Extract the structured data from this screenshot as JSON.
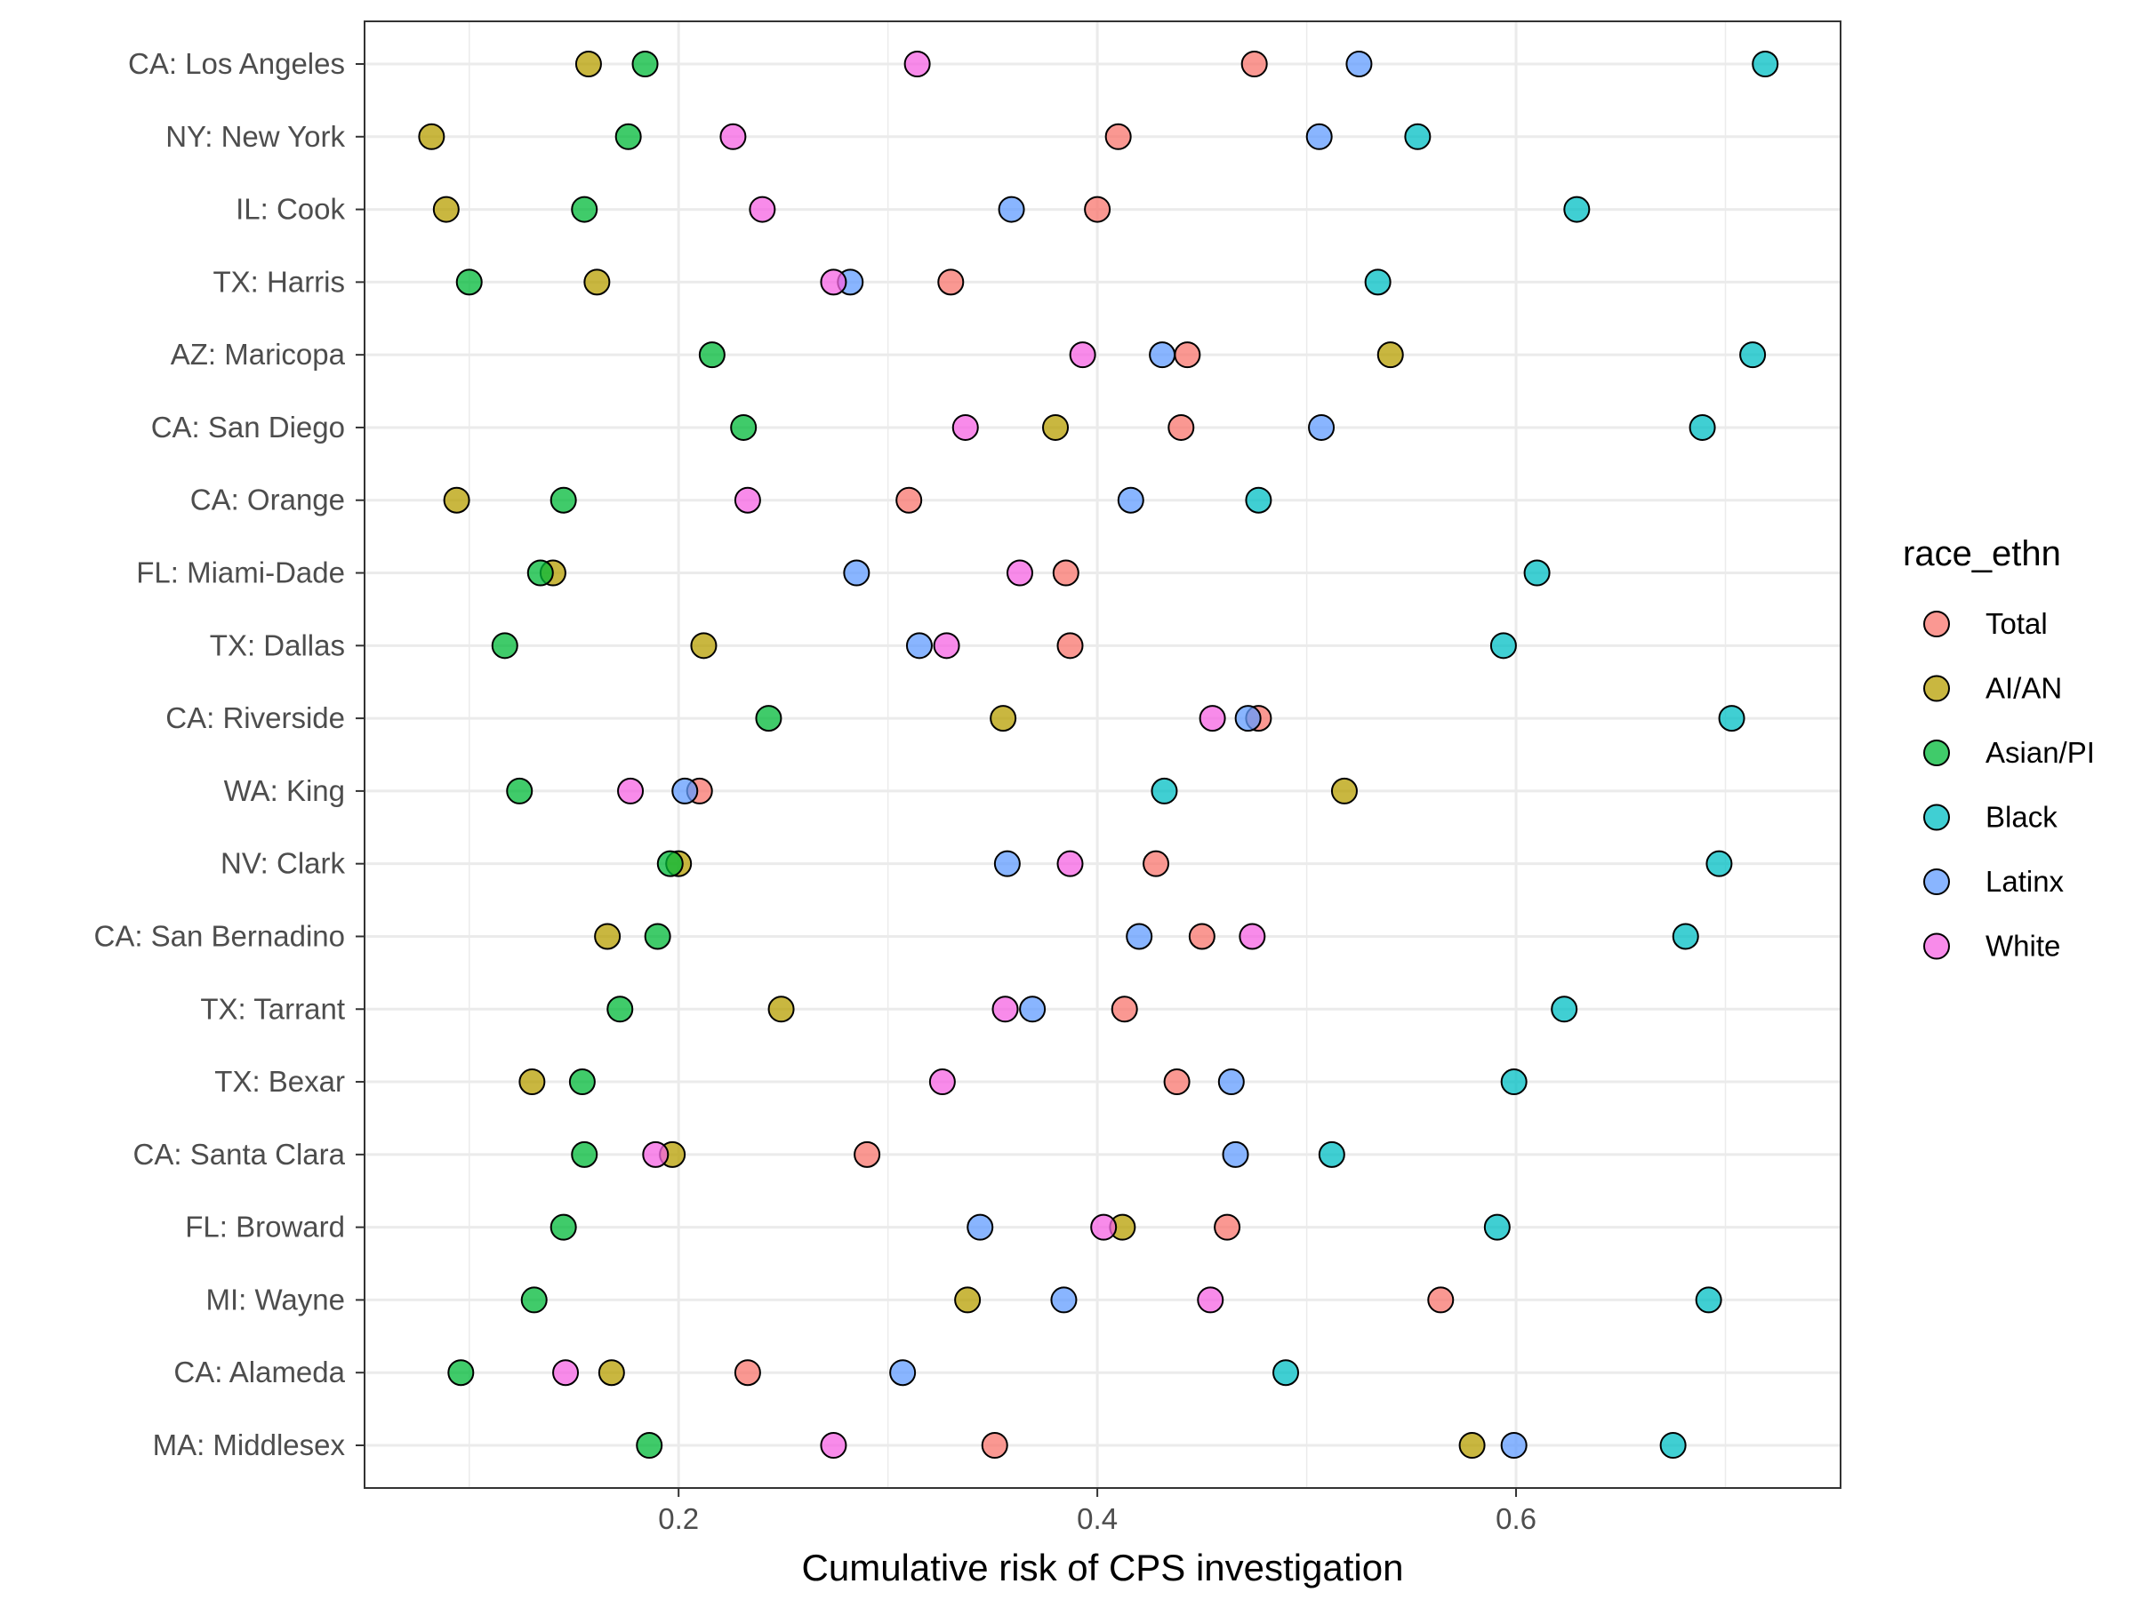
{
  "chart_data": {
    "type": "scatter",
    "xlabel": "Cumulative risk of CPS investigation",
    "ylabel": "",
    "xlim": [
      0.05,
      0.755
    ],
    "x_ticks": [
      0.2,
      0.4,
      0.6
    ],
    "x_tick_labels": [
      "0.2",
      "0.4",
      "0.6"
    ],
    "grid": true,
    "legend": {
      "title": "race_ethn",
      "placement": "right"
    },
    "categories": [
      "CA: Los Angeles",
      "NY: New York",
      "IL: Cook",
      "TX: Harris",
      "AZ: Maricopa",
      "CA: San Diego",
      "CA: Orange",
      "FL: Miami-Dade",
      "TX: Dallas",
      "CA: Riverside",
      "WA: King",
      "NV: Clark",
      "CA: San Bernadino",
      "TX: Tarrant",
      "TX: Bexar",
      "CA: Santa Clara",
      "FL: Broward",
      "MI: Wayne",
      "CA: Alameda",
      "MA: Middlesex"
    ],
    "series": [
      {
        "name": "Total",
        "color": "#F8766D",
        "values": [
          0.475,
          0.41,
          0.4,
          0.33,
          0.443,
          0.44,
          0.31,
          0.385,
          0.387,
          0.477,
          0.21,
          0.428,
          0.45,
          0.413,
          0.438,
          0.29,
          0.462,
          0.564,
          0.233,
          0.351
        ]
      },
      {
        "name": "AI/AN",
        "color": "#B79F00",
        "values": [
          0.157,
          0.082,
          0.089,
          0.161,
          0.54,
          0.38,
          0.094,
          0.14,
          0.212,
          0.355,
          0.518,
          0.2,
          0.166,
          0.249,
          0.13,
          0.197,
          0.412,
          0.338,
          0.168,
          0.579
        ]
      },
      {
        "name": "Asian/PI",
        "color": "#00BA38",
        "values": [
          0.184,
          0.176,
          0.155,
          0.1,
          0.216,
          0.231,
          0.145,
          0.134,
          0.117,
          0.243,
          0.124,
          0.196,
          0.19,
          0.172,
          0.154,
          0.155,
          0.145,
          0.131,
          0.096,
          0.186
        ]
      },
      {
        "name": "Black",
        "color": "#00BFC4",
        "values": [
          0.719,
          0.553,
          0.629,
          0.534,
          0.713,
          0.689,
          0.477,
          0.61,
          0.594,
          0.703,
          0.432,
          0.697,
          0.681,
          0.623,
          0.599,
          0.512,
          0.591,
          0.692,
          0.49,
          0.675
        ]
      },
      {
        "name": "Latinx",
        "color": "#619CFF",
        "values": [
          0.525,
          0.506,
          0.359,
          0.282,
          0.431,
          0.507,
          0.416,
          0.285,
          0.315,
          0.472,
          0.203,
          0.357,
          0.42,
          0.369,
          0.464,
          0.466,
          0.344,
          0.384,
          0.307,
          0.599
        ]
      },
      {
        "name": "White",
        "color": "#F564E3",
        "values": [
          0.314,
          0.226,
          0.24,
          0.274,
          0.393,
          0.337,
          0.233,
          0.363,
          0.328,
          0.455,
          0.177,
          0.387,
          0.474,
          0.356,
          0.326,
          0.189,
          0.403,
          0.454,
          0.146,
          0.274
        ]
      }
    ]
  }
}
